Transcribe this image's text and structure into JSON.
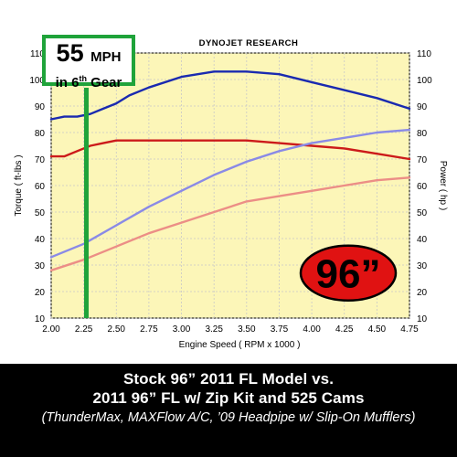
{
  "chart_data": {
    "type": "line",
    "title": "DYNOJET RESEARCH",
    "xlabel": "Engine Speed ( RPM x 1000 )",
    "ylabel_left": "Torque ( ft-lbs )",
    "ylabel_right": "Power ( hp )",
    "xlim": [
      2.0,
      4.75
    ],
    "ylim": [
      10,
      110
    ],
    "x_ticks": [
      "2.00",
      "2.25",
      "2.50",
      "2.75",
      "3.00",
      "3.25",
      "3.50",
      "3.75",
      "4.00",
      "4.25",
      "4.50",
      "4.75"
    ],
    "y_ticks": [
      "10",
      "20",
      "30",
      "40",
      "50",
      "60",
      "70",
      "80",
      "90",
      "100",
      "110"
    ],
    "grid": true,
    "colors": {
      "plot_background": "#fcf6b8",
      "grid": "#c8c8c8",
      "torque_modified": "#1a2ab0",
      "torque_stock": "#cc1a1a",
      "power_modified": "#8a8ae6",
      "power_stock": "#ec8e86",
      "marker": "#1fa33a"
    },
    "series": [
      {
        "key": "torque_modified",
        "x": [
          2.0,
          2.1,
          2.2,
          2.3,
          2.4,
          2.5,
          2.6,
          2.75,
          3.0,
          3.25,
          3.5,
          3.75,
          4.0,
          4.25,
          4.5,
          4.75
        ],
        "y": [
          85,
          86,
          86,
          87,
          89,
          91,
          94,
          97,
          101,
          103,
          103,
          102,
          99,
          96,
          93,
          89
        ]
      },
      {
        "key": "torque_stock",
        "x": [
          2.0,
          2.1,
          2.2,
          2.3,
          2.4,
          2.5,
          2.75,
          3.0,
          3.25,
          3.5,
          3.75,
          4.0,
          4.25,
          4.5,
          4.75
        ],
        "y": [
          71,
          71,
          73,
          75,
          76,
          77,
          77,
          77,
          77,
          77,
          76,
          75,
          74,
          72,
          70
        ]
      },
      {
        "key": "power_modified",
        "x": [
          2.0,
          2.25,
          2.5,
          2.75,
          3.0,
          3.25,
          3.5,
          3.75,
          4.0,
          4.25,
          4.5,
          4.75
        ],
        "y": [
          33,
          38,
          45,
          52,
          58,
          64,
          69,
          73,
          76,
          78,
          80,
          81
        ]
      },
      {
        "key": "power_stock",
        "x": [
          2.0,
          2.25,
          2.5,
          2.75,
          3.0,
          3.25,
          3.5,
          3.75,
          4.0,
          4.25,
          4.5,
          4.75
        ],
        "y": [
          28,
          32,
          37,
          42,
          46,
          50,
          54,
          56,
          58,
          60,
          62,
          63
        ]
      }
    ],
    "marker_x": 2.27,
    "badge_text": "96”"
  },
  "speed_box": {
    "value": "55",
    "unit": "MPH",
    "gear_prefix": "in 6",
    "gear_suffix": "th",
    "gear_word": " Gear"
  },
  "caption": {
    "line1": "Stock 96” 2011 FL Model vs.",
    "line2": "2011 96” FL w/ Zip Kit and 525 Cams",
    "line3": "(ThunderMax, MAXFlow A/C, ’09 Headpipe w/ Slip-On Mufflers)"
  }
}
